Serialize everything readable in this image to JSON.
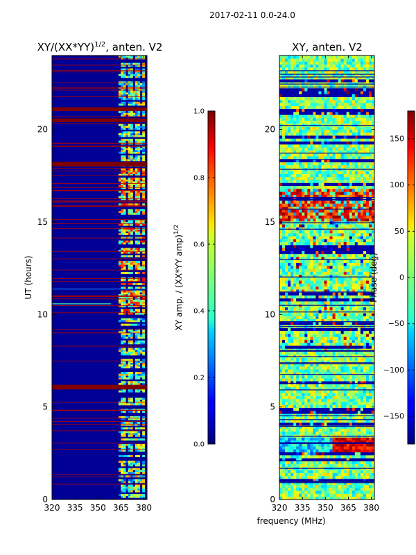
{
  "suptitle": "2017-02-11 0.0-24.0",
  "shared_xlabel": "frequency (MHz)",
  "chart_data": [
    {
      "type": "heatmap",
      "title_main": "XY/(XX*YY)",
      "title_sup": "1/2",
      "title_tail": ", anten. V2",
      "ylabel": "UT (hours)",
      "xlim": [
        320,
        382
      ],
      "ylim": [
        0,
        24
      ],
      "xticks": [
        320,
        335,
        350,
        365,
        380
      ],
      "yticks": [
        0,
        5,
        10,
        15,
        20
      ],
      "colormap": "jet",
      "colorbar": {
        "label_main": "XY amp. / (XX*YY amp)",
        "label_sup": "1/2",
        "range": [
          0.0,
          1.0
        ],
        "ticks": [
          "0.0",
          "0.2",
          "0.4",
          "0.6",
          "0.8",
          "1.0"
        ]
      },
      "rfi_band_center_mhz": 372,
      "rfi_band_halfwidth_mhz": 9,
      "saturated_bands_hours": [
        [
          5.95,
          6.2
        ],
        [
          18.0,
          18.25
        ],
        [
          20.4,
          20.6
        ],
        [
          21.0,
          21.2
        ]
      ]
    },
    {
      "type": "heatmap",
      "title": "XY, anten. V2",
      "xlim": [
        320,
        382
      ],
      "ylim": [
        0,
        24
      ],
      "xticks": [
        320,
        335,
        350,
        365,
        380
      ],
      "yticks": [
        0,
        5,
        10,
        15,
        20
      ],
      "colormap": "jet",
      "colorbar": {
        "label": "Phase (deg)",
        "range": [
          -180,
          180
        ],
        "ticks": [
          "−150",
          "−100",
          "−50",
          "0",
          "50",
          "100",
          "150"
        ]
      },
      "hot_regions_hours": [
        [
          15.0,
          16.8
        ],
        [
          2.4,
          3.3
        ]
      ]
    }
  ],
  "colors": {
    "axis": "#000000",
    "low": "#00007f",
    "high": "#7f0000"
  }
}
